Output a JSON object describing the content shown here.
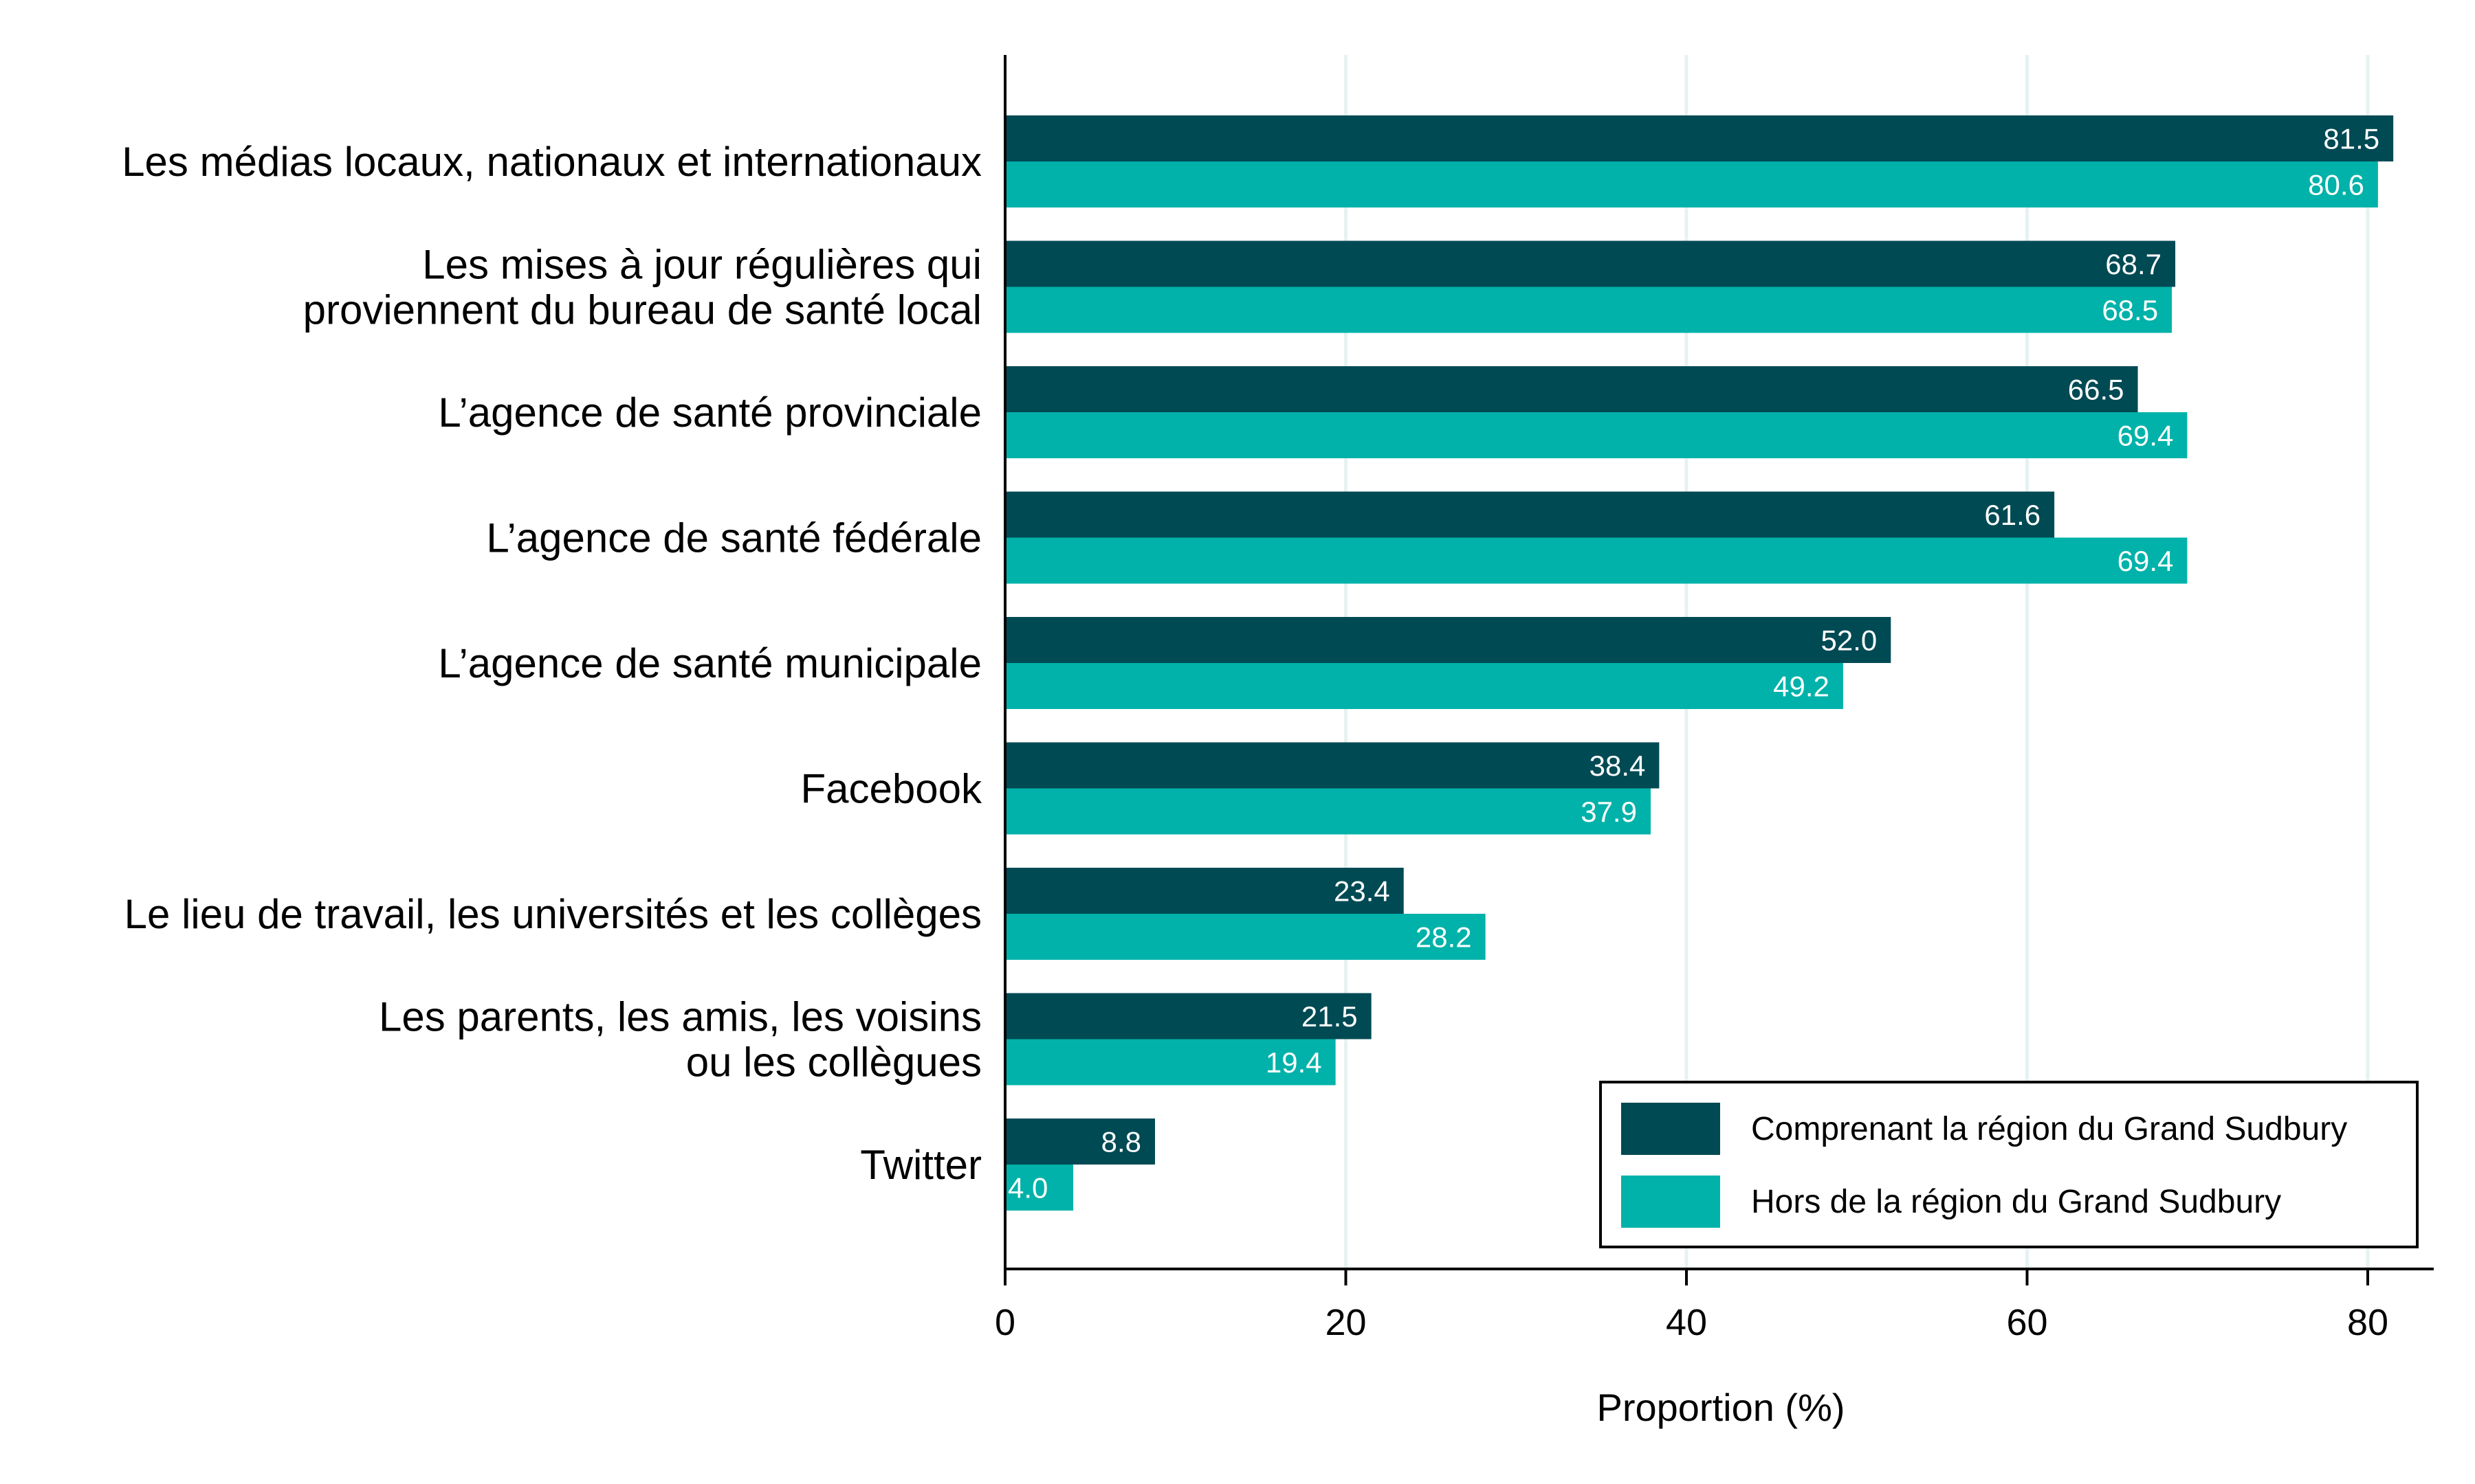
{
  "chart_data": {
    "type": "bar",
    "orientation": "horizontal",
    "categories": [
      "Les médias locaux, nationaux et internationaux",
      "Les mises à jour régulières qui\nproviennent du bureau de santé local",
      "L’agence de santé provinciale",
      "L’agence de santé fédérale",
      "L’agence de santé municipale",
      "Facebook",
      "Le lieu de travail, les universités et les collèges",
      "Les parents, les amis, les voisins\nou les collègues",
      "Twitter"
    ],
    "series": [
      {
        "name": "Comprenant la région du Grand Sudbury",
        "color": "#004a54",
        "values": [
          81.5,
          68.7,
          66.5,
          61.6,
          52.0,
          38.4,
          23.4,
          21.5,
          8.8
        ]
      },
      {
        "name": "Hors de la région du Grand Sudbury",
        "color": "#00b2a9",
        "values": [
          80.6,
          68.5,
          69.4,
          69.4,
          49.2,
          37.9,
          28.2,
          19.4,
          4.0
        ]
      }
    ],
    "xlabel": "Proportion (%)",
    "ylabel": "",
    "xlim": [
      0,
      84
    ],
    "xticks": [
      0,
      20,
      40,
      60,
      80
    ],
    "grid": true,
    "gridlines_color": "#e6f2f1",
    "legend_position": "bottom-right",
    "value_decimals": 1
  }
}
